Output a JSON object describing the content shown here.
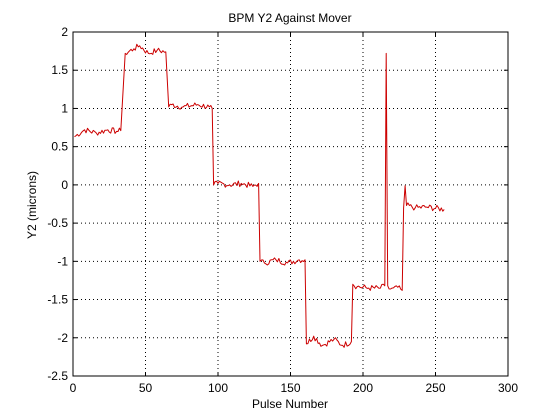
{
  "chart_data": {
    "type": "line",
    "title": "BPM Y2 Against Mover",
    "xlabel": "Pulse Number",
    "ylabel": "Y2 (microns)",
    "xlim": [
      0,
      300
    ],
    "ylim": [
      -2.5,
      2
    ],
    "xticks": [
      0,
      50,
      100,
      150,
      200,
      250,
      300
    ],
    "yticks": [
      -2.5,
      -2,
      -1.5,
      -1,
      -0.5,
      0,
      0.5,
      1,
      1.5,
      2
    ],
    "xtick_labels": [
      "0",
      "50",
      "100",
      "150",
      "200",
      "250",
      "300"
    ],
    "ytick_labels": [
      "-2.5",
      "-2",
      "-1.5",
      "-1",
      "-0.5",
      "0",
      "0.5",
      "1",
      "1.5",
      "2"
    ],
    "grid": true,
    "grid_style": "dotted",
    "line_color": "#cc0000",
    "series": [
      {
        "x": [
          1,
          8,
          16,
          24,
          30,
          33,
          36,
          42,
          46,
          52,
          58,
          64,
          66,
          68,
          76,
          86,
          94,
          96,
          97,
          100,
          108,
          116,
          124,
          128,
          129,
          132,
          140,
          148,
          156,
          160,
          161,
          166,
          172,
          180,
          186,
          192,
          193,
          196,
          204,
          212,
          215,
          216,
          217,
          218,
          220,
          224,
          227,
          228,
          229,
          230,
          236,
          244,
          256
        ],
        "y": [
          0.63,
          0.72,
          0.68,
          0.72,
          0.7,
          0.71,
          1.72,
          1.78,
          1.82,
          1.72,
          1.76,
          1.74,
          1.02,
          1.05,
          1.02,
          1.05,
          1.02,
          1.0,
          0.0,
          0.02,
          0.0,
          0.02,
          -0.02,
          0.02,
          -1.0,
          -1.02,
          -0.98,
          -1.02,
          -0.98,
          -0.98,
          -2.08,
          -1.98,
          -2.1,
          -2.02,
          -2.1,
          -2.05,
          -1.3,
          -1.33,
          -1.35,
          -1.35,
          -1.32,
          1.72,
          -1.32,
          -1.36,
          -1.35,
          -1.34,
          -1.38,
          -0.3,
          -0.01,
          -0.27,
          -0.3,
          -0.29,
          -0.32
        ]
      }
    ]
  }
}
